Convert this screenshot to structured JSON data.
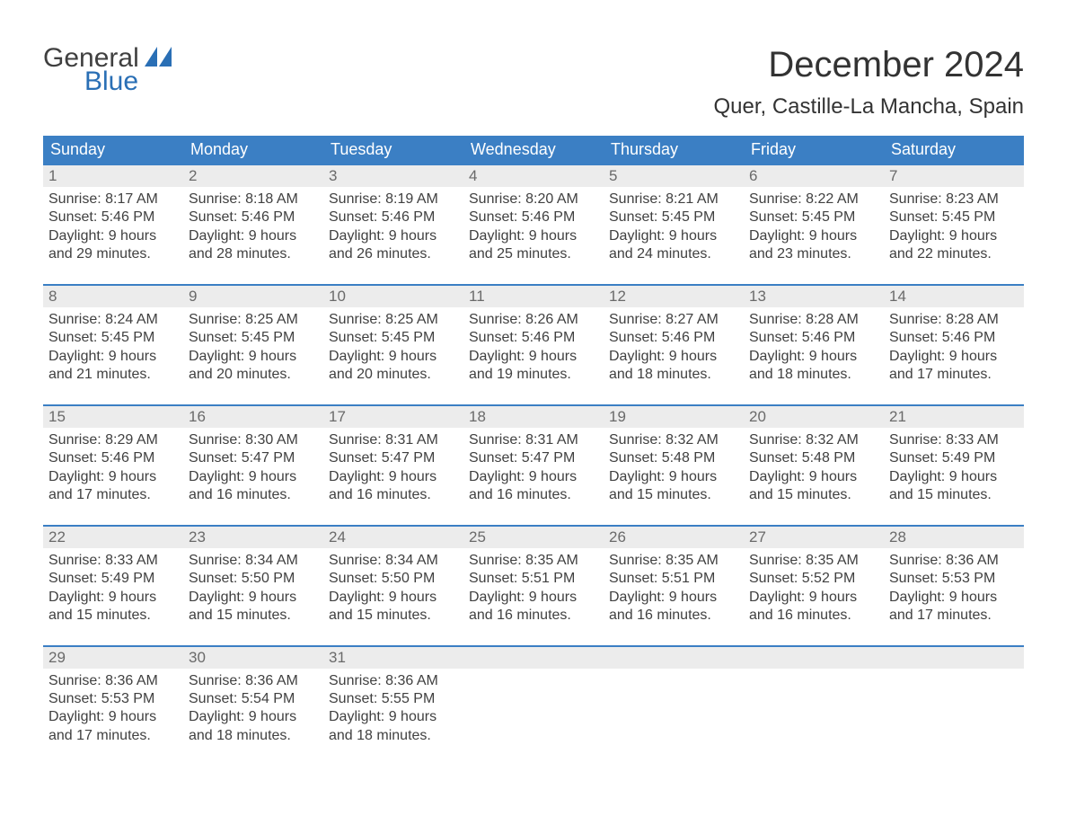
{
  "brand": {
    "part1": "General",
    "part2": "Blue"
  },
  "title": "December 2024",
  "location": "Quer, Castille-La Mancha, Spain",
  "colors": {
    "header_bg": "#3b7fc4",
    "header_text": "#ffffff",
    "rule": "#3b7fc4",
    "daynum_bg": "#ececec",
    "text": "#404040",
    "brand_blue": "#2a6fb5",
    "page_bg": "#ffffff"
  },
  "fonts": {
    "base": "Arial",
    "title_pt": 40,
    "location_pt": 24,
    "header_pt": 18,
    "body_pt": 16
  },
  "day_labels": [
    "Sunday",
    "Monday",
    "Tuesday",
    "Wednesday",
    "Thursday",
    "Friday",
    "Saturday"
  ],
  "weeks": [
    [
      {
        "n": "1",
        "sr": "8:17 AM",
        "ss": "5:46 PM",
        "dl": "9 hours and 29 minutes."
      },
      {
        "n": "2",
        "sr": "8:18 AM",
        "ss": "5:46 PM",
        "dl": "9 hours and 28 minutes."
      },
      {
        "n": "3",
        "sr": "8:19 AM",
        "ss": "5:46 PM",
        "dl": "9 hours and 26 minutes."
      },
      {
        "n": "4",
        "sr": "8:20 AM",
        "ss": "5:46 PM",
        "dl": "9 hours and 25 minutes."
      },
      {
        "n": "5",
        "sr": "8:21 AM",
        "ss": "5:45 PM",
        "dl": "9 hours and 24 minutes."
      },
      {
        "n": "6",
        "sr": "8:22 AM",
        "ss": "5:45 PM",
        "dl": "9 hours and 23 minutes."
      },
      {
        "n": "7",
        "sr": "8:23 AM",
        "ss": "5:45 PM",
        "dl": "9 hours and 22 minutes."
      }
    ],
    [
      {
        "n": "8",
        "sr": "8:24 AM",
        "ss": "5:45 PM",
        "dl": "9 hours and 21 minutes."
      },
      {
        "n": "9",
        "sr": "8:25 AM",
        "ss": "5:45 PM",
        "dl": "9 hours and 20 minutes."
      },
      {
        "n": "10",
        "sr": "8:25 AM",
        "ss": "5:45 PM",
        "dl": "9 hours and 20 minutes."
      },
      {
        "n": "11",
        "sr": "8:26 AM",
        "ss": "5:46 PM",
        "dl": "9 hours and 19 minutes."
      },
      {
        "n": "12",
        "sr": "8:27 AM",
        "ss": "5:46 PM",
        "dl": "9 hours and 18 minutes."
      },
      {
        "n": "13",
        "sr": "8:28 AM",
        "ss": "5:46 PM",
        "dl": "9 hours and 18 minutes."
      },
      {
        "n": "14",
        "sr": "8:28 AM",
        "ss": "5:46 PM",
        "dl": "9 hours and 17 minutes."
      }
    ],
    [
      {
        "n": "15",
        "sr": "8:29 AM",
        "ss": "5:46 PM",
        "dl": "9 hours and 17 minutes."
      },
      {
        "n": "16",
        "sr": "8:30 AM",
        "ss": "5:47 PM",
        "dl": "9 hours and 16 minutes."
      },
      {
        "n": "17",
        "sr": "8:31 AM",
        "ss": "5:47 PM",
        "dl": "9 hours and 16 minutes."
      },
      {
        "n": "18",
        "sr": "8:31 AM",
        "ss": "5:47 PM",
        "dl": "9 hours and 16 minutes."
      },
      {
        "n": "19",
        "sr": "8:32 AM",
        "ss": "5:48 PM",
        "dl": "9 hours and 15 minutes."
      },
      {
        "n": "20",
        "sr": "8:32 AM",
        "ss": "5:48 PM",
        "dl": "9 hours and 15 minutes."
      },
      {
        "n": "21",
        "sr": "8:33 AM",
        "ss": "5:49 PM",
        "dl": "9 hours and 15 minutes."
      }
    ],
    [
      {
        "n": "22",
        "sr": "8:33 AM",
        "ss": "5:49 PM",
        "dl": "9 hours and 15 minutes."
      },
      {
        "n": "23",
        "sr": "8:34 AM",
        "ss": "5:50 PM",
        "dl": "9 hours and 15 minutes."
      },
      {
        "n": "24",
        "sr": "8:34 AM",
        "ss": "5:50 PM",
        "dl": "9 hours and 15 minutes."
      },
      {
        "n": "25",
        "sr": "8:35 AM",
        "ss": "5:51 PM",
        "dl": "9 hours and 16 minutes."
      },
      {
        "n": "26",
        "sr": "8:35 AM",
        "ss": "5:51 PM",
        "dl": "9 hours and 16 minutes."
      },
      {
        "n": "27",
        "sr": "8:35 AM",
        "ss": "5:52 PM",
        "dl": "9 hours and 16 minutes."
      },
      {
        "n": "28",
        "sr": "8:36 AM",
        "ss": "5:53 PM",
        "dl": "9 hours and 17 minutes."
      }
    ],
    [
      {
        "n": "29",
        "sr": "8:36 AM",
        "ss": "5:53 PM",
        "dl": "9 hours and 17 minutes."
      },
      {
        "n": "30",
        "sr": "8:36 AM",
        "ss": "5:54 PM",
        "dl": "9 hours and 18 minutes."
      },
      {
        "n": "31",
        "sr": "8:36 AM",
        "ss": "5:55 PM",
        "dl": "9 hours and 18 minutes."
      },
      null,
      null,
      null,
      null
    ]
  ],
  "labels": {
    "sunrise": "Sunrise:",
    "sunset": "Sunset:",
    "daylight": "Daylight:"
  }
}
